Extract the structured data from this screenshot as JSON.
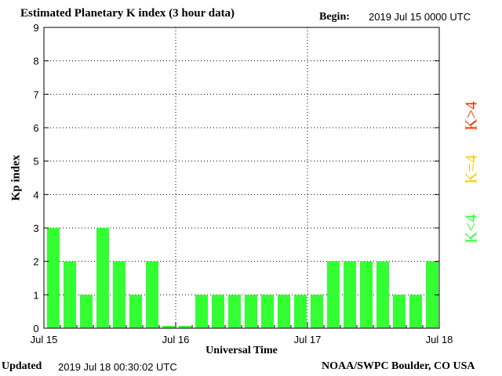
{
  "header": {
    "title": "Estimated Planetary K index (3 hour data)",
    "begin_label": "Begin:",
    "begin_value": "2019 Jul 15 0000 UTC"
  },
  "footer": {
    "updated_label": "Updated",
    "updated_value": "2019 Jul 18 00:30:02 UTC",
    "credit": "NOAA/SWPC Boulder, CO USA"
  },
  "key_legend": {
    "high": {
      "label": "K>4",
      "color": "#ff3300"
    },
    "equal": {
      "label": "K=4",
      "color": "#ffcc00"
    },
    "low": {
      "label": "K<4",
      "color": "#33ff33"
    }
  },
  "chart_data": {
    "type": "bar",
    "title": "Estimated Planetary K index (3 hour data)",
    "xlabel": "Universal Time",
    "ylabel": "Kp index",
    "ylim": [
      0,
      9
    ],
    "yticks": [
      0,
      1,
      2,
      3,
      4,
      5,
      6,
      7,
      8,
      9
    ],
    "x_tick_labels": [
      "Jul 15",
      "Jul 16",
      "Jul 17",
      "Jul 18"
    ],
    "interval_hours": 3,
    "bar_color": "#33ff33",
    "grid": true,
    "values": [
      3,
      2,
      1,
      3,
      2,
      1,
      2,
      0.07,
      0.07,
      1,
      1,
      1,
      1,
      1,
      1,
      1,
      1,
      2,
      2,
      2,
      2,
      1,
      1,
      2
    ]
  }
}
